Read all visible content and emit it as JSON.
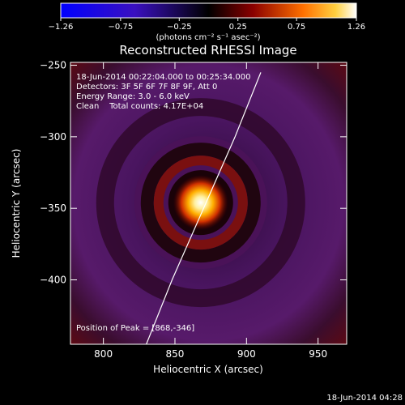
{
  "chart_data": {
    "type": "heatmap",
    "title": "Reconstructed RHESSI Image",
    "xlabel": "Heliocentric X (arcsec)",
    "ylabel": "Heliocentric Y (arcsec)",
    "xlim": [
      777,
      970
    ],
    "ylim": [
      -445,
      -248
    ],
    "x_ticks": [
      800,
      850,
      900,
      950
    ],
    "x_tick_labels": [
      "800",
      "850",
      "900",
      "950"
    ],
    "y_ticks": [
      -250,
      -300,
      -350,
      -400
    ],
    "y_tick_labels": [
      "−250",
      "−300",
      "−350",
      "−400"
    ],
    "colorbar": {
      "range": [
        -1.26,
        1.26
      ],
      "ticks": [
        -1.26,
        -0.75,
        -0.25,
        0.25,
        0.75,
        1.26
      ],
      "tick_labels": [
        "−1.26",
        "−0.75",
        "−0.25",
        "0.25",
        "0.75",
        "1.26"
      ],
      "unit_label": "(photons cm⁻² s⁻¹ asec⁻²)"
    },
    "annotations": [
      "18-Jun-2014 00:22:04.000 to 00:25:34.000",
      "Detectors: 3F 5F 6F 7F 8F 9F, Att 0",
      "Energy Range: 3.0 - 6.0 keV",
      "Clean    Total counts: 4.17E+04"
    ],
    "peak_text": "Position of Peak = [868,-346]",
    "peak": {
      "x": 868,
      "y": -346,
      "value": 1.26
    },
    "limb_curve": [
      [
        830,
        -445
      ],
      [
        848,
        -400
      ],
      [
        870,
        -350
      ],
      [
        892,
        -300
      ],
      [
        910,
        -255
      ]
    ],
    "grid": false
  },
  "footer": {
    "timestamp": "18-Jun-2014 04:28"
  },
  "colors": {
    "background": "#000000",
    "text": "#ffffff",
    "limb": "#ffffff"
  }
}
